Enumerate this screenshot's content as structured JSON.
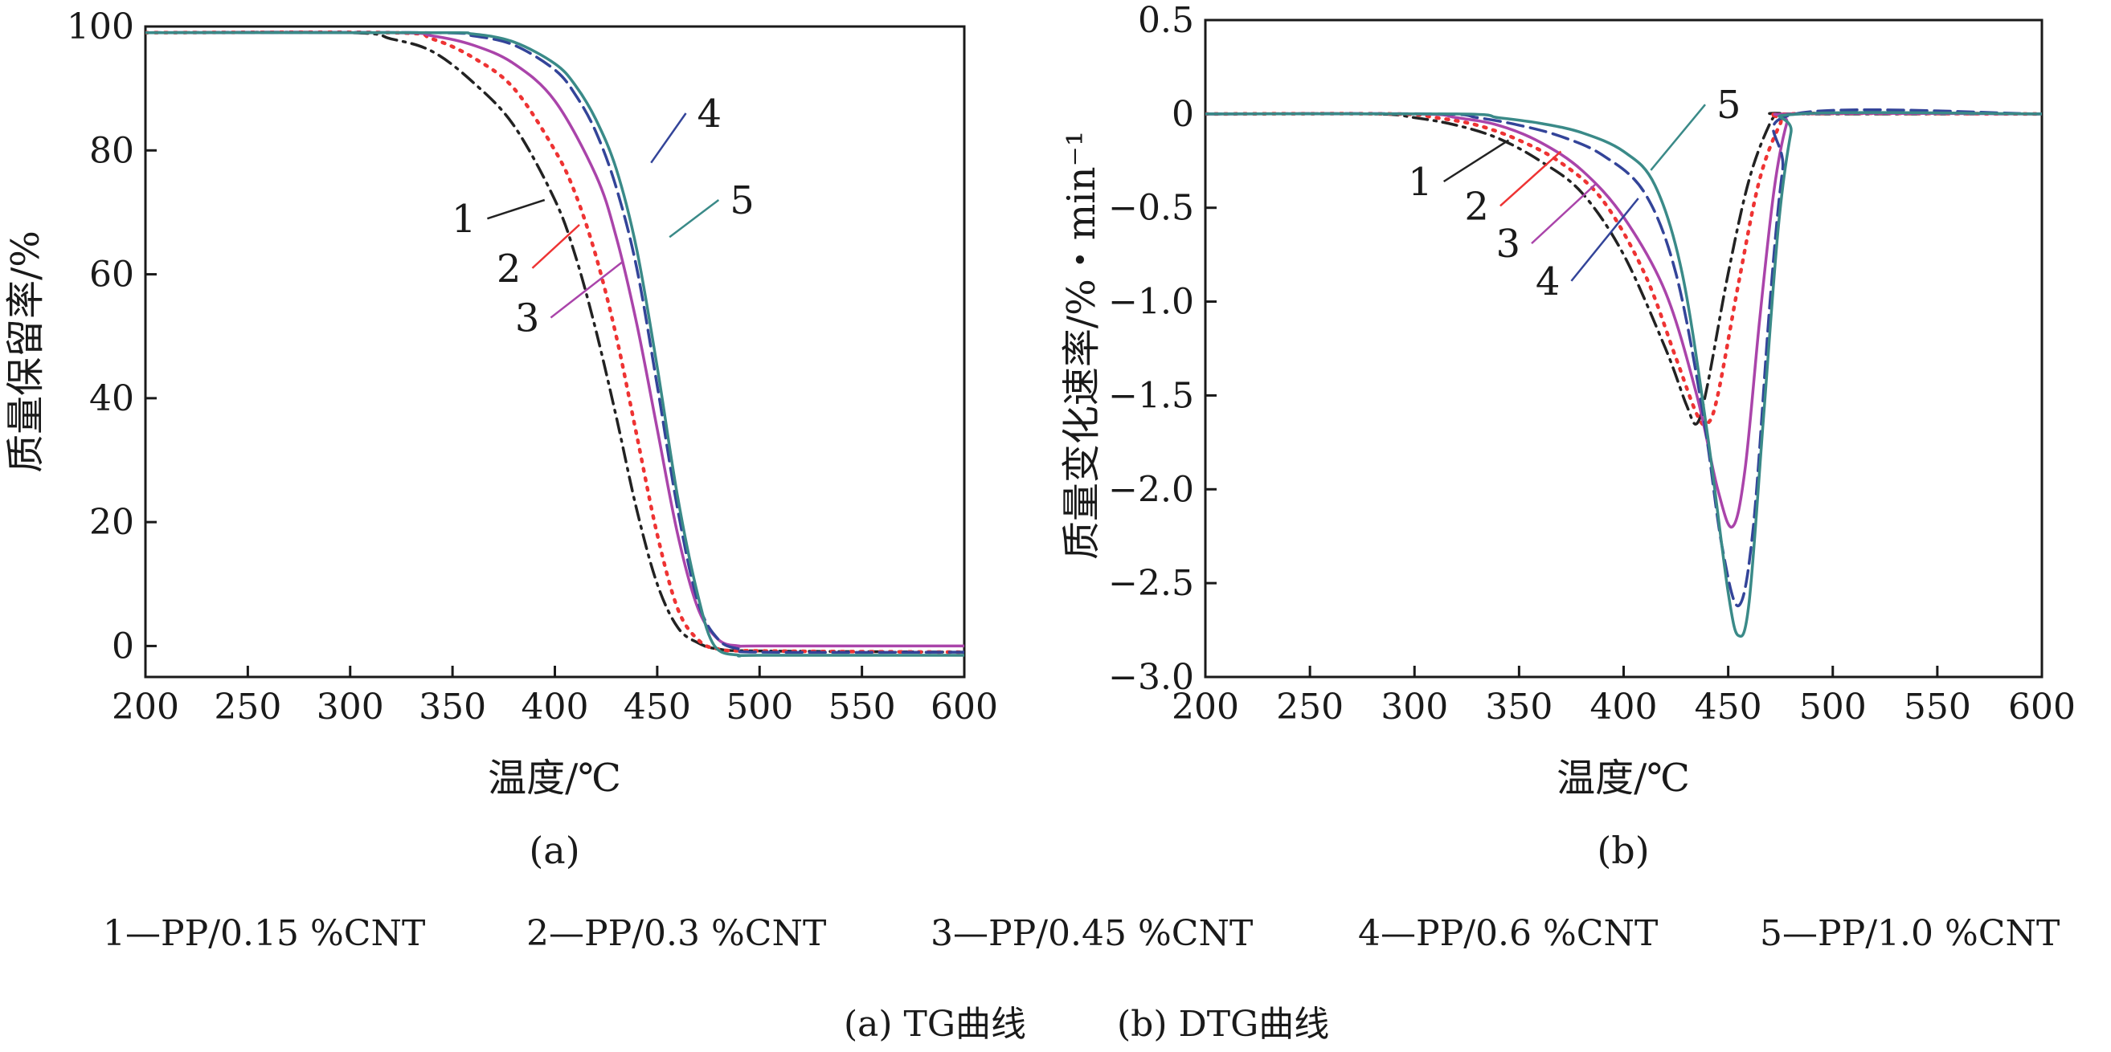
{
  "chart_data": [
    {
      "type": "line",
      "panel_label": "(a)",
      "xlabel": "温度/℃",
      "ylabel": "质量保留率/%",
      "xlim": [
        200,
        600
      ],
      "ylim": [
        -5,
        100
      ],
      "xticks": [
        200,
        250,
        300,
        350,
        400,
        450,
        500,
        550,
        600
      ],
      "yticks": [
        0,
        20,
        40,
        60,
        80,
        100
      ],
      "xtick_labels": [
        "200",
        "250",
        "300",
        "350",
        "400",
        "450",
        "500",
        "550",
        "600"
      ],
      "ytick_labels": [
        "0",
        "20",
        "40",
        "60",
        "80",
        "100"
      ],
      "grid": false,
      "series": [
        {
          "name": "1",
          "color": "#222222",
          "dash": "dashdot",
          "x": [
            200,
            300,
            320,
            340,
            360,
            380,
            400,
            410,
            420,
            430,
            440,
            450,
            460,
            470,
            480,
            500,
            600
          ],
          "y": [
            99,
            99,
            98,
            96,
            91,
            84,
            72,
            63,
            51,
            37,
            22,
            10,
            3,
            0.5,
            -0.5,
            -0.8,
            -1
          ]
        },
        {
          "name": "2",
          "color": "#ee3333",
          "dash": "dot",
          "x": [
            200,
            320,
            340,
            360,
            380,
            400,
            410,
            420,
            430,
            440,
            450,
            460,
            470,
            480,
            500,
            600
          ],
          "y": [
            99,
            99,
            98,
            95,
            90,
            80,
            73,
            63,
            50,
            34,
            18,
            6,
            1,
            -0.5,
            -0.8,
            -1
          ]
        },
        {
          "name": "3",
          "color": "#aa44aa",
          "dash": "solid",
          "x": [
            200,
            320,
            340,
            360,
            380,
            400,
            420,
            430,
            440,
            450,
            460,
            470,
            480,
            490,
            500,
            600
          ],
          "y": [
            99,
            99,
            98.5,
            97,
            94,
            88,
            76,
            66,
            52,
            35,
            18,
            6,
            1,
            0,
            0,
            0
          ]
        },
        {
          "name": "4",
          "color": "#334499",
          "dash": "dashed",
          "x": [
            200,
            340,
            360,
            380,
            400,
            410,
            420,
            430,
            440,
            450,
            460,
            470,
            480,
            490,
            500,
            600
          ],
          "y": [
            99,
            99,
            98.5,
            97,
            93,
            89,
            83,
            74,
            61,
            42,
            22,
            7,
            1,
            -0.5,
            -1,
            -1
          ]
        },
        {
          "name": "5",
          "color": "#3a8a88",
          "dash": "solid",
          "x": [
            200,
            340,
            360,
            380,
            400,
            410,
            420,
            430,
            440,
            450,
            460,
            470,
            478,
            490,
            500,
            600
          ],
          "y": [
            99,
            99,
            98.8,
            97.5,
            94,
            90.5,
            85,
            77,
            64,
            45,
            24,
            8,
            0,
            -1.5,
            -1.5,
            -1.5
          ]
        }
      ],
      "curve_labels": [
        {
          "text": "1",
          "series": "1",
          "x": 395,
          "y": 72,
          "lx": 367,
          "ly": 69
        },
        {
          "text": "2",
          "series": "2",
          "x": 412,
          "y": 68,
          "lx": 389,
          "ly": 61
        },
        {
          "text": "3",
          "series": "3",
          "x": 433,
          "y": 62,
          "lx": 398,
          "ly": 53
        },
        {
          "text": "4",
          "series": "4",
          "x": 447,
          "y": 78,
          "lx": 464,
          "ly": 86
        },
        {
          "text": "5",
          "series": "5",
          "x": 456,
          "y": 66,
          "lx": 480,
          "ly": 72
        }
      ]
    },
    {
      "type": "line",
      "panel_label": "(b)",
      "xlabel": "温度/℃",
      "ylabel": "质量变化速率/%・min⁻¹",
      "xlim": [
        200,
        600
      ],
      "ylim": [
        -3.0,
        0.5
      ],
      "xticks": [
        200,
        250,
        300,
        350,
        400,
        450,
        500,
        550,
        600
      ],
      "yticks": [
        -3.0,
        -2.5,
        -2.0,
        -1.5,
        -1.0,
        -0.5,
        0,
        0.5
      ],
      "xtick_labels": [
        "200",
        "250",
        "300",
        "350",
        "400",
        "450",
        "500",
        "550",
        "600"
      ],
      "ytick_labels": [
        "−3.0",
        "−2.5",
        "−2.0",
        "−1.5",
        "−1.0",
        "−0.5",
        "0",
        "0.5"
      ],
      "grid": false,
      "series": [
        {
          "name": "1",
          "color": "#222222",
          "dash": "dashdot",
          "x": [
            200,
            280,
            300,
            320,
            340,
            360,
            380,
            400,
            420,
            430,
            435,
            440,
            450,
            460,
            470,
            475,
            480,
            600
          ],
          "y": [
            0,
            0,
            -0.02,
            -0.06,
            -0.13,
            -0.25,
            -0.42,
            -0.75,
            -1.25,
            -1.55,
            -1.65,
            -1.45,
            -0.85,
            -0.35,
            -0.05,
            0,
            0,
            0
          ]
        },
        {
          "name": "2",
          "color": "#ee3333",
          "dash": "dot",
          "x": [
            200,
            290,
            310,
            330,
            350,
            370,
            390,
            410,
            425,
            435,
            440,
            445,
            455,
            465,
            475,
            480,
            600
          ],
          "y": [
            0,
            0,
            -0.02,
            -0.06,
            -0.14,
            -0.26,
            -0.46,
            -0.85,
            -1.3,
            -1.6,
            -1.65,
            -1.5,
            -0.9,
            -0.35,
            -0.05,
            0,
            0
          ]
        },
        {
          "name": "3",
          "color": "#aa44aa",
          "dash": "solid",
          "x": [
            200,
            300,
            320,
            340,
            360,
            380,
            400,
            420,
            435,
            445,
            452,
            458,
            465,
            472,
            478,
            482,
            600
          ],
          "y": [
            0,
            0,
            -0.02,
            -0.06,
            -0.15,
            -0.3,
            -0.55,
            -0.95,
            -1.5,
            -2.0,
            -2.2,
            -1.9,
            -1.1,
            -0.4,
            -0.05,
            0,
            0
          ]
        },
        {
          "name": "4",
          "color": "#334499",
          "dash": "dashed",
          "x": [
            200,
            310,
            330,
            350,
            370,
            390,
            410,
            425,
            438,
            447,
            455,
            462,
            470,
            476,
            482,
            600
          ],
          "y": [
            0,
            0,
            -0.02,
            -0.06,
            -0.12,
            -0.22,
            -0.42,
            -0.85,
            -1.6,
            -2.3,
            -2.62,
            -2.2,
            -1.0,
            -0.3,
            0,
            0
          ]
        },
        {
          "name": "5",
          "color": "#3a8a88",
          "dash": "solid",
          "x": [
            200,
            320,
            340,
            360,
            380,
            400,
            415,
            428,
            440,
            450,
            455,
            460,
            467,
            474,
            480,
            484,
            600
          ],
          "y": [
            0,
            0,
            -0.02,
            -0.05,
            -0.1,
            -0.2,
            -0.38,
            -0.85,
            -1.7,
            -2.55,
            -2.78,
            -2.6,
            -1.6,
            -0.6,
            -0.1,
            0,
            0
          ]
        }
      ],
      "curve_labels": [
        {
          "text": "1",
          "series": "1",
          "x": 345,
          "y": -0.14,
          "lx": 314,
          "ly": -0.36
        },
        {
          "text": "2",
          "series": "2",
          "x": 370,
          "y": -0.2,
          "lx": 341,
          "ly": -0.49
        },
        {
          "text": "3",
          "series": "3",
          "x": 387,
          "y": -0.37,
          "lx": 356,
          "ly": -0.69
        },
        {
          "text": "4",
          "series": "4",
          "x": 407,
          "y": -0.45,
          "lx": 375,
          "ly": -0.89
        },
        {
          "text": "5",
          "series": "5",
          "x": 413,
          "y": -0.3,
          "lx": 439,
          "ly": 0.05
        }
      ]
    }
  ],
  "legend_line": {
    "items": [
      "1—PP/0.15 %CNT",
      "2—PP/0.3 %CNT",
      "3—PP/0.45 %CNT",
      "4—PP/0.6 %CNT",
      "5—PP/1.0 %CNT"
    ]
  },
  "caption": {
    "items": [
      "(a) TG曲线",
      "(b) DTG曲线"
    ]
  }
}
